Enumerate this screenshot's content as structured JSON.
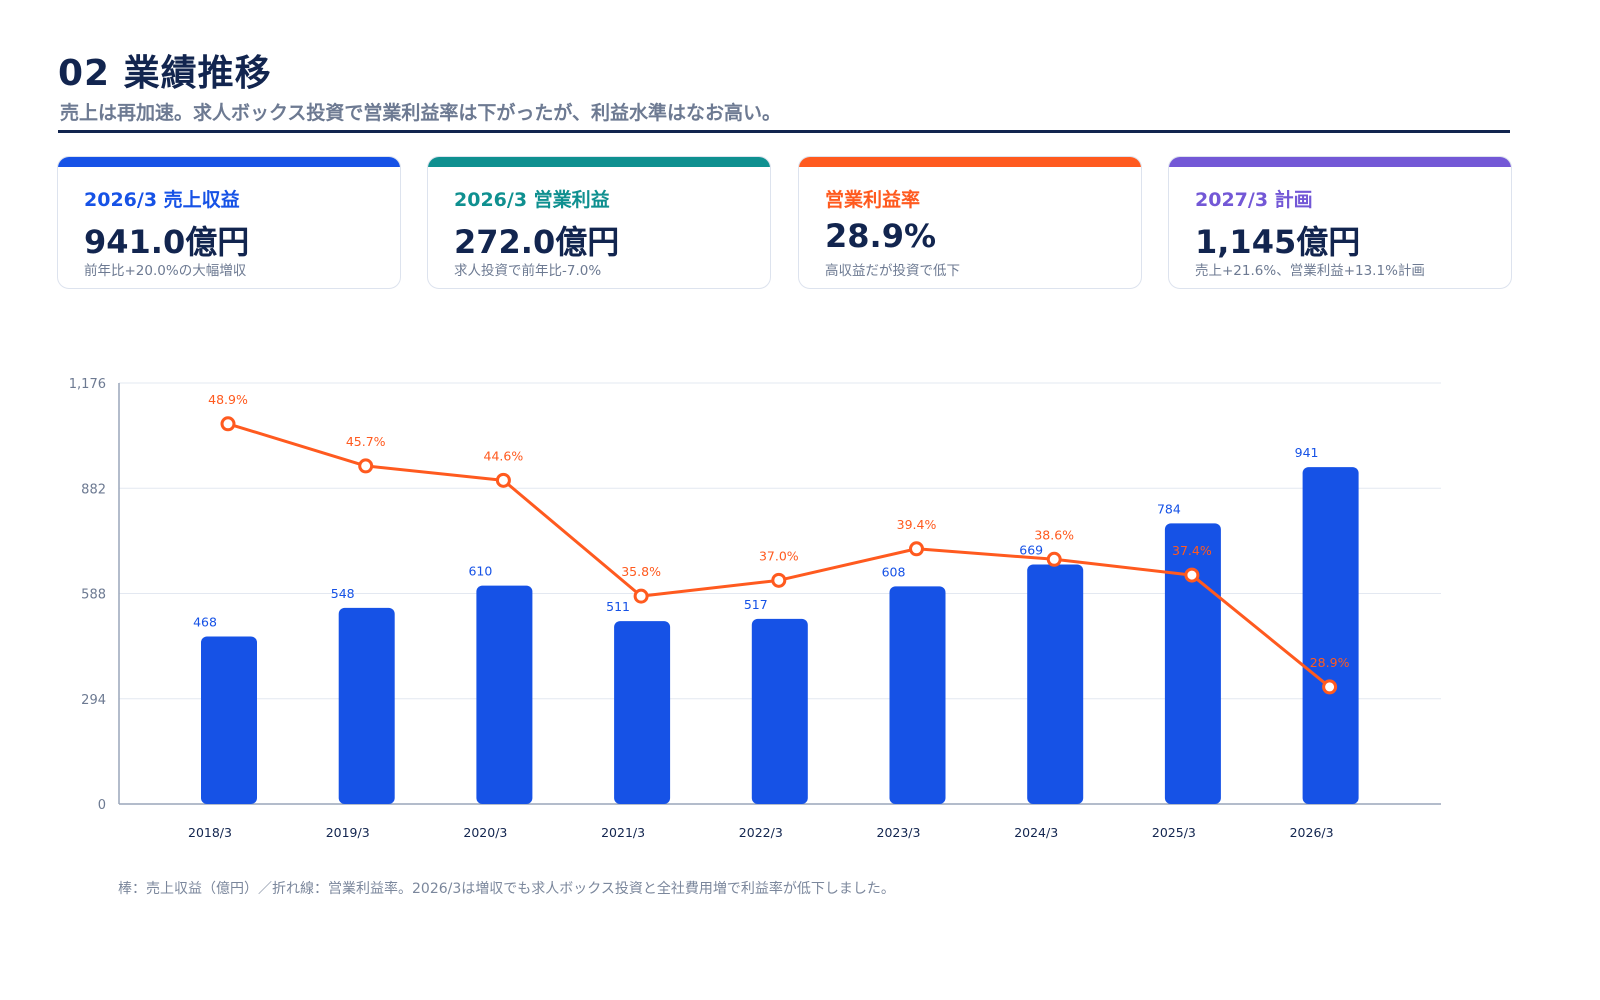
{
  "header": {
    "title": "02 業績推移",
    "subtitle": "売上は再加速。求人ボックス投資で営業利益率は下がったが、利益水準はなお高い。"
  },
  "cards": [
    {
      "label": "2026/3 売上収益",
      "value": "941.0億円",
      "note": "前年比+20.0%の大幅増収",
      "color": "#1652e6"
    },
    {
      "label": "2026/3 営業利益",
      "value": "272.0億円",
      "note": "求人投資で前年比-7.0%",
      "color": "#0f9090"
    },
    {
      "label": "営業利益率",
      "value": "28.9%",
      "note": "高収益だが投資で低下",
      "color": "#ff5a1f"
    },
    {
      "label": "2027/3 計画",
      "value": "1,145億円",
      "note": "売上+21.6%、営業利益+13.1%計画",
      "color": "#7358d6"
    }
  ],
  "chart_data": {
    "type": "bar",
    "categories": [
      "2018/3",
      "2019/3",
      "2020/3",
      "2021/3",
      "2022/3",
      "2023/3",
      "2024/3",
      "2025/3",
      "2026/3"
    ],
    "series": [
      {
        "type": "bar",
        "values": [
          468,
          548,
          610,
          511,
          517,
          608,
          669,
          784,
          941
        ],
        "labels": [
          "468",
          "548",
          "610",
          "511",
          "517",
          "608",
          "669",
          "784",
          "941"
        ],
        "color": "#1652e6"
      },
      {
        "type": "line",
        "values": [
          48.9,
          45.7,
          44.6,
          35.8,
          37.0,
          39.4,
          38.6,
          37.4,
          28.9
        ],
        "labels": [
          "48.9%",
          "45.7%",
          "44.6%",
          "35.8%",
          "37.0%",
          "39.4%",
          "38.6%",
          "37.4%",
          "28.9%"
        ],
        "color": "#ff5a1f"
      }
    ],
    "yticks": [
      0,
      294,
      588,
      882,
      1176
    ],
    "ytick_labels": [
      "0",
      "294",
      "588",
      "882",
      "1,176"
    ],
    "ylim": [
      0,
      1176
    ],
    "y2lim": [
      20,
      52
    ],
    "grid": true
  },
  "footnote": "棒：売上収益（億円）／折れ線：営業利益率。2026/3は増収でも求人ボックス投資と全社費用増で利益率が低下しました。"
}
